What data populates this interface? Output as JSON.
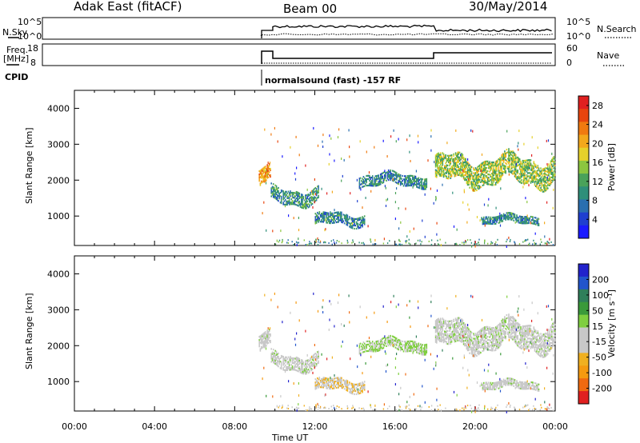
{
  "header": {
    "station": "Adak East (fitACF)",
    "beam": "Beam 00",
    "date": "30/May/2014"
  },
  "top_panels": {
    "nsky_label": "N.Sky",
    "nsky_ticks": [
      "10^5",
      "10^0"
    ],
    "nsearch_label": "N.Search",
    "nsearch_ticks": [
      "10^5",
      "10^0"
    ],
    "freq_label_1": "Freq.",
    "freq_label_2": "[MHz]",
    "freq_ticks": [
      "18",
      "8"
    ],
    "nave_label": "Nave",
    "nave_ticks": [
      "60",
      "0"
    ],
    "cpid_label": "CPID",
    "cpid_text": "normalsound (fast) -157 RF"
  },
  "colors": {
    "power_scale": [
      "#1a1aff",
      "#1f3fd0",
      "#2a6fb0",
      "#2f8f7a",
      "#4aa25a",
      "#8cc63f",
      "#e6d12a",
      "#f3a81c",
      "#f07a10",
      "#e8450e",
      "#e02020"
    ],
    "velocity_scale": [
      "#2222cc",
      "#2255cc",
      "#2f7f5a",
      "#3a9a3a",
      "#7fcf3f",
      "#c8c8c8",
      "#c8c8c8",
      "#f0b020",
      "#f59a10",
      "#f06a10",
      "#e02020"
    ]
  },
  "chart_data": [
    {
      "type": "heatmap",
      "title": "Power",
      "ylabel": "Slant Range [km]",
      "xlabel": "Time UT",
      "x_ticks": [
        "00:00",
        "04:00",
        "08:00",
        "12:00",
        "16:00",
        "20:00",
        "00:00"
      ],
      "y_ticks": [
        "1000",
        "2000",
        "3000",
        "4000"
      ],
      "ylim": [
        180,
        4500
      ],
      "colorbar_label": "Power [dB]",
      "colorbar_ticks": [
        "4",
        "8",
        "12",
        "16",
        "20",
        "24",
        "28"
      ],
      "colorbar_range": [
        0,
        30
      ],
      "echo_regions": [
        {
          "t_start": 9.2,
          "t_end": 9.8,
          "r_center": 2050,
          "r_halfwidth": 220,
          "power": 21
        },
        {
          "t_start": 9.8,
          "t_end": 12.2,
          "r_center": 1550,
          "r_halfwidth": 200,
          "power": 10
        },
        {
          "t_start": 12.0,
          "t_end": 14.5,
          "r_center": 880,
          "r_halfwidth": 140,
          "power": 9
        },
        {
          "t_start": 14.2,
          "t_end": 17.6,
          "r_center": 2000,
          "r_halfwidth": 150,
          "power": 9
        },
        {
          "t_start": 18.0,
          "t_end": 24.0,
          "r_center": 2250,
          "r_halfwidth": 320,
          "power": 15
        },
        {
          "t_start": 20.3,
          "t_end": 23.2,
          "r_center": 900,
          "r_halfwidth": 110,
          "power": 9
        }
      ]
    },
    {
      "type": "heatmap",
      "title": "Velocity",
      "ylabel": "Slant Range [km]",
      "xlabel": "Time UT",
      "x_ticks": [
        "00:00",
        "04:00",
        "08:00",
        "12:00",
        "16:00",
        "20:00",
        "00:00"
      ],
      "y_ticks": [
        "1000",
        "2000",
        "3000",
        "4000"
      ],
      "ylim": [
        180,
        4500
      ],
      "colorbar_label": "Velocity [m s⁻¹]",
      "colorbar_ticks": [
        "200",
        "100",
        "50",
        "15",
        "-15",
        "-50",
        "-100",
        "-200"
      ],
      "colorbar_range": [
        -250,
        250
      ],
      "echo_regions": [
        {
          "t_start": 9.2,
          "t_end": 9.8,
          "r_center": 2050,
          "r_halfwidth": 220,
          "velocity": 0
        },
        {
          "t_start": 9.8,
          "t_end": 12.2,
          "r_center": 1550,
          "r_halfwidth": 200,
          "velocity": 0
        },
        {
          "t_start": 12.0,
          "t_end": 14.5,
          "r_center": 880,
          "r_halfwidth": 140,
          "velocity": -60
        },
        {
          "t_start": 14.2,
          "t_end": 17.6,
          "r_center": 2000,
          "r_halfwidth": 150,
          "velocity": 25
        },
        {
          "t_start": 18.0,
          "t_end": 24.0,
          "r_center": 2250,
          "r_halfwidth": 320,
          "velocity": 0
        },
        {
          "t_start": 20.3,
          "t_end": 23.2,
          "r_center": 900,
          "r_halfwidth": 110,
          "velocity": 0
        }
      ]
    }
  ]
}
